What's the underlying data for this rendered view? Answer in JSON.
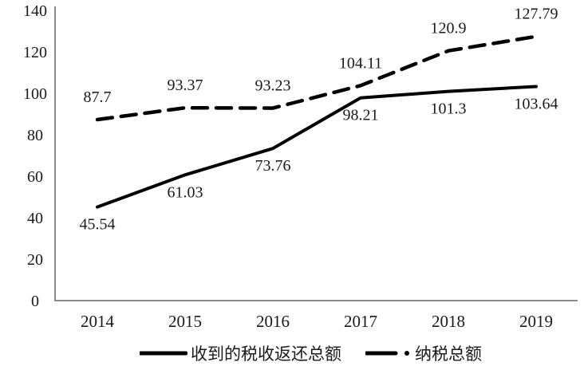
{
  "chart_data": {
    "type": "line",
    "title": "",
    "xlabel": "",
    "ylabel": "",
    "categories": [
      "2014",
      "2015",
      "2016",
      "2017",
      "2018",
      "2019"
    ],
    "series": [
      {
        "name": "收到的税收返还总额",
        "line_style": "solid",
        "values": [
          45.54,
          61.03,
          73.76,
          98.21,
          101.3,
          103.64
        ],
        "labels": [
          "45.54",
          "61.03",
          "73.76",
          "98.21",
          "101.3",
          "103.64"
        ],
        "label_position": "below"
      },
      {
        "name": "纳税总额",
        "line_style": "dashed",
        "values": [
          87.7,
          93.37,
          93.23,
          104.11,
          120.9,
          127.79
        ],
        "labels": [
          "87.7",
          "93.37",
          "93.23",
          "104.11",
          "120.9",
          "127.79"
        ],
        "label_position": "above"
      }
    ],
    "ylim": [
      0,
      140
    ],
    "ytick_step": 20,
    "grid": false,
    "legend_position": "bottom"
  },
  "legend": {
    "items": [
      {
        "label": "收到的税收返还总额",
        "style": "solid"
      },
      {
        "label": "纳税总额",
        "style": "dashed"
      }
    ]
  },
  "colors": {
    "line": "#000000",
    "axis": "#8a8a8a",
    "text": "#1a1a1a",
    "background": "#ffffff"
  }
}
